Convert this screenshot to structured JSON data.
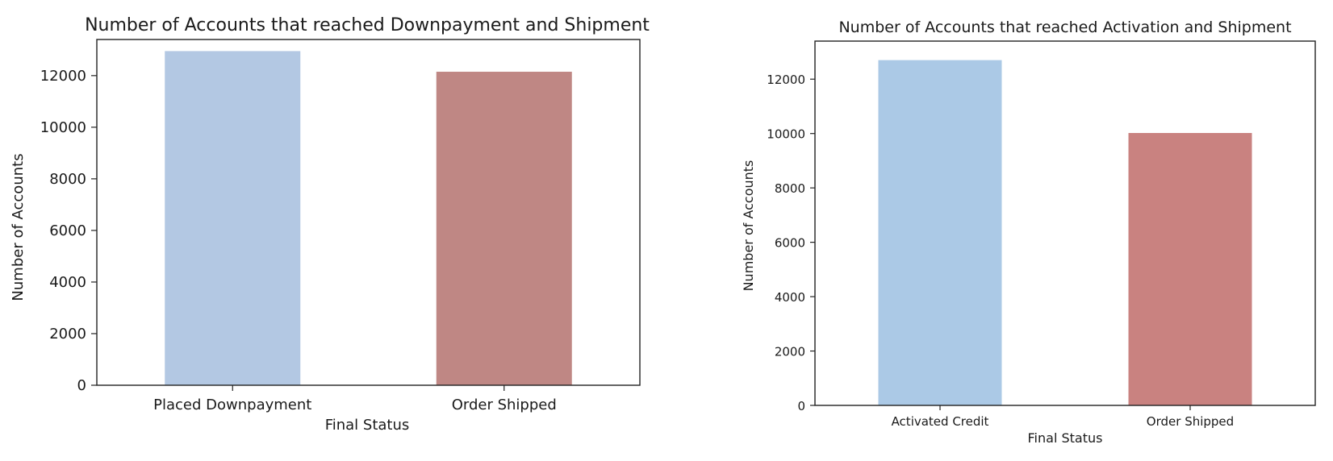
{
  "chart_data": [
    {
      "type": "bar",
      "title": "Number of Accounts that reached Downpayment and Shipment",
      "xlabel": "Final Status",
      "ylabel": "Number of Accounts",
      "categories": [
        "Placed Downpayment",
        "Order Shipped"
      ],
      "values": [
        12950,
        12150
      ],
      "colors": [
        "#b3c8e3",
        "#bf8784"
      ],
      "ylim": [
        0,
        13400
      ],
      "yticks": [
        0,
        2000,
        4000,
        6000,
        8000,
        10000,
        12000
      ],
      "grid": false
    },
    {
      "type": "bar",
      "title": "Number of Accounts that reached Activation and Shipment",
      "xlabel": "Final Status",
      "ylabel": "Number of Accounts",
      "categories": [
        "Activated Credit",
        "Order Shipped"
      ],
      "values": [
        12700,
        10020
      ],
      "colors": [
        "#abc9e6",
        "#c98280"
      ],
      "ylim": [
        0,
        13400
      ],
      "yticks": [
        0,
        2000,
        4000,
        6000,
        8000,
        10000,
        12000
      ],
      "grid": false
    }
  ]
}
